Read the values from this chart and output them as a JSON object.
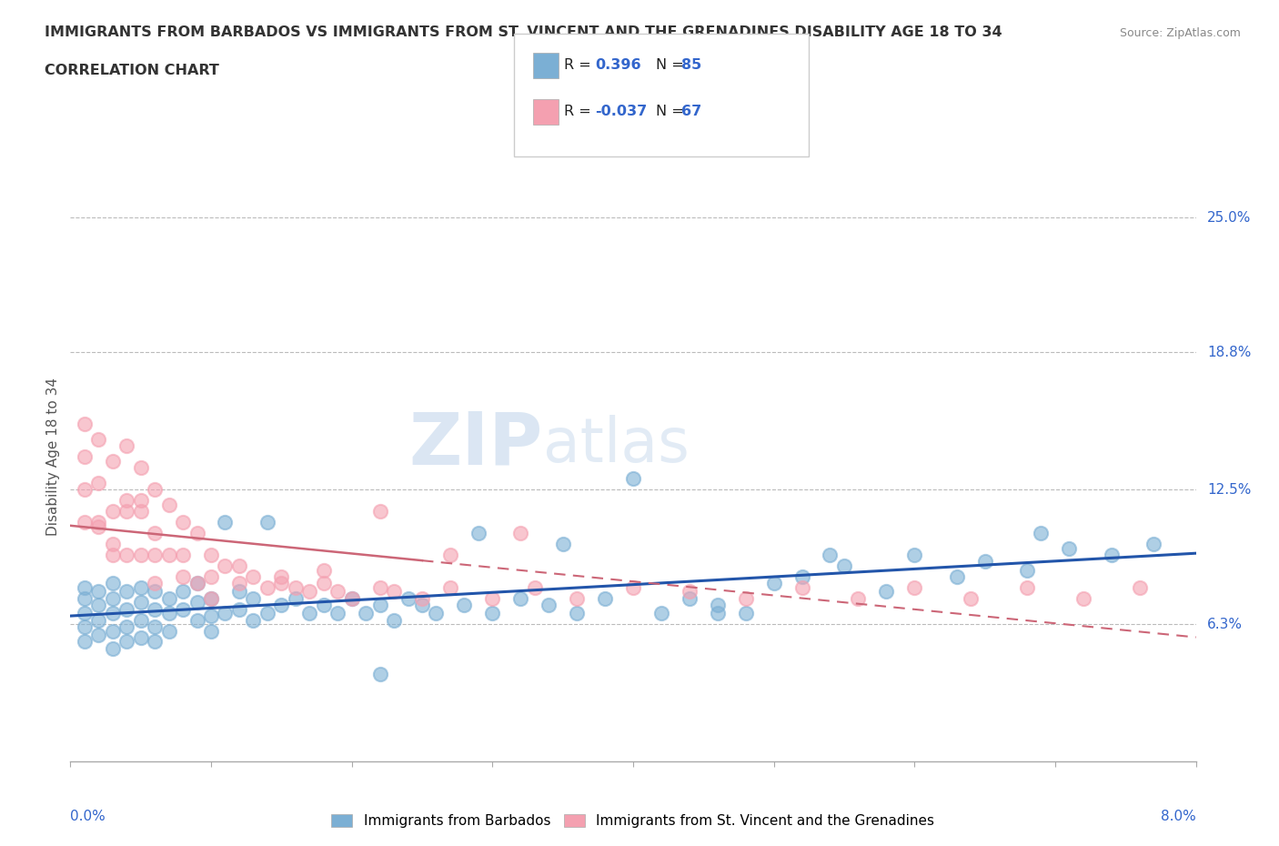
{
  "title1": "IMMIGRANTS FROM BARBADOS VS IMMIGRANTS FROM ST. VINCENT AND THE GRENADINES DISABILITY AGE 18 TO 34",
  "title2": "CORRELATION CHART",
  "source": "Source: ZipAtlas.com",
  "ylabel": "Disability Age 18 to 34",
  "xmin": 0.0,
  "xmax": 0.08,
  "ymin": 0.0,
  "ymax": 0.28,
  "yticks": [
    0.063,
    0.125,
    0.188,
    0.25
  ],
  "ytick_labels": [
    "6.3%",
    "12.5%",
    "18.8%",
    "25.0%"
  ],
  "xticks": [
    0.0,
    0.01,
    0.02,
    0.03,
    0.04,
    0.05,
    0.06,
    0.07,
    0.08
  ],
  "xtick_edge_labels": {
    "0.0": "0.0%",
    "0.08": "8.0%"
  },
  "grid_color": "#bbbbbb",
  "watermark_zip": "ZIP",
  "watermark_atlas": "atlas",
  "series1_color": "#7bafd4",
  "series2_color": "#f4a0b0",
  "series1_label": "Immigrants from Barbados",
  "series2_label": "Immigrants from St. Vincent and the Grenadines",
  "r1": 0.396,
  "n1": 85,
  "r2": -0.037,
  "n2": 67,
  "legend_r_color": "#3366cc",
  "legend_n_color": "#3366cc",
  "title_color": "#333333",
  "axis_label_color": "#555555",
  "tick_color": "#3366cc",
  "background_color": "#ffffff",
  "trendline1_color": "#2255aa",
  "trendline2_color": "#cc6677",
  "series1_x": [
    0.001,
    0.001,
    0.001,
    0.001,
    0.001,
    0.002,
    0.002,
    0.002,
    0.002,
    0.003,
    0.003,
    0.003,
    0.003,
    0.003,
    0.004,
    0.004,
    0.004,
    0.004,
    0.005,
    0.005,
    0.005,
    0.005,
    0.006,
    0.006,
    0.006,
    0.006,
    0.007,
    0.007,
    0.007,
    0.008,
    0.008,
    0.009,
    0.009,
    0.009,
    0.01,
    0.01,
    0.01,
    0.011,
    0.011,
    0.012,
    0.012,
    0.013,
    0.013,
    0.014,
    0.014,
    0.015,
    0.016,
    0.017,
    0.018,
    0.019,
    0.02,
    0.021,
    0.022,
    0.023,
    0.024,
    0.025,
    0.026,
    0.028,
    0.03,
    0.032,
    0.034,
    0.035,
    0.036,
    0.038,
    0.04,
    0.042,
    0.044,
    0.046,
    0.048,
    0.05,
    0.052,
    0.055,
    0.058,
    0.06,
    0.063,
    0.065,
    0.068,
    0.071,
    0.074,
    0.077,
    0.069,
    0.054,
    0.046,
    0.029,
    0.022
  ],
  "series1_y": [
    0.08,
    0.075,
    0.068,
    0.062,
    0.055,
    0.078,
    0.072,
    0.065,
    0.058,
    0.082,
    0.075,
    0.068,
    0.06,
    0.052,
    0.078,
    0.07,
    0.062,
    0.055,
    0.08,
    0.073,
    0.065,
    0.057,
    0.078,
    0.07,
    0.062,
    0.055,
    0.075,
    0.068,
    0.06,
    0.078,
    0.07,
    0.082,
    0.073,
    0.065,
    0.075,
    0.067,
    0.06,
    0.11,
    0.068,
    0.078,
    0.07,
    0.075,
    0.065,
    0.11,
    0.068,
    0.072,
    0.075,
    0.068,
    0.072,
    0.068,
    0.075,
    0.068,
    0.072,
    0.065,
    0.075,
    0.072,
    0.068,
    0.072,
    0.068,
    0.075,
    0.072,
    0.1,
    0.068,
    0.075,
    0.13,
    0.068,
    0.075,
    0.072,
    0.068,
    0.082,
    0.085,
    0.09,
    0.078,
    0.095,
    0.085,
    0.092,
    0.088,
    0.098,
    0.095,
    0.1,
    0.105,
    0.095,
    0.068,
    0.105,
    0.04
  ],
  "series2_x": [
    0.001,
    0.001,
    0.001,
    0.001,
    0.002,
    0.002,
    0.002,
    0.003,
    0.003,
    0.003,
    0.004,
    0.004,
    0.004,
    0.005,
    0.005,
    0.005,
    0.006,
    0.006,
    0.006,
    0.007,
    0.007,
    0.008,
    0.008,
    0.009,
    0.009,
    0.01,
    0.01,
    0.011,
    0.012,
    0.013,
    0.014,
    0.015,
    0.016,
    0.017,
    0.018,
    0.019,
    0.02,
    0.022,
    0.023,
    0.025,
    0.027,
    0.03,
    0.033,
    0.036,
    0.04,
    0.044,
    0.048,
    0.052,
    0.056,
    0.06,
    0.064,
    0.068,
    0.072,
    0.076,
    0.002,
    0.003,
    0.004,
    0.005,
    0.006,
    0.008,
    0.01,
    0.012,
    0.015,
    0.018,
    0.022,
    0.027,
    0.032
  ],
  "series2_y": [
    0.155,
    0.14,
    0.125,
    0.11,
    0.148,
    0.128,
    0.108,
    0.138,
    0.115,
    0.095,
    0.145,
    0.12,
    0.095,
    0.135,
    0.115,
    0.095,
    0.125,
    0.105,
    0.082,
    0.118,
    0.095,
    0.11,
    0.085,
    0.105,
    0.082,
    0.095,
    0.075,
    0.09,
    0.082,
    0.085,
    0.08,
    0.085,
    0.08,
    0.078,
    0.082,
    0.078,
    0.075,
    0.08,
    0.078,
    0.075,
    0.08,
    0.075,
    0.08,
    0.075,
    0.08,
    0.078,
    0.075,
    0.08,
    0.075,
    0.08,
    0.075,
    0.08,
    0.075,
    0.08,
    0.11,
    0.1,
    0.115,
    0.12,
    0.095,
    0.095,
    0.085,
    0.09,
    0.082,
    0.088,
    0.115,
    0.095,
    0.105
  ]
}
